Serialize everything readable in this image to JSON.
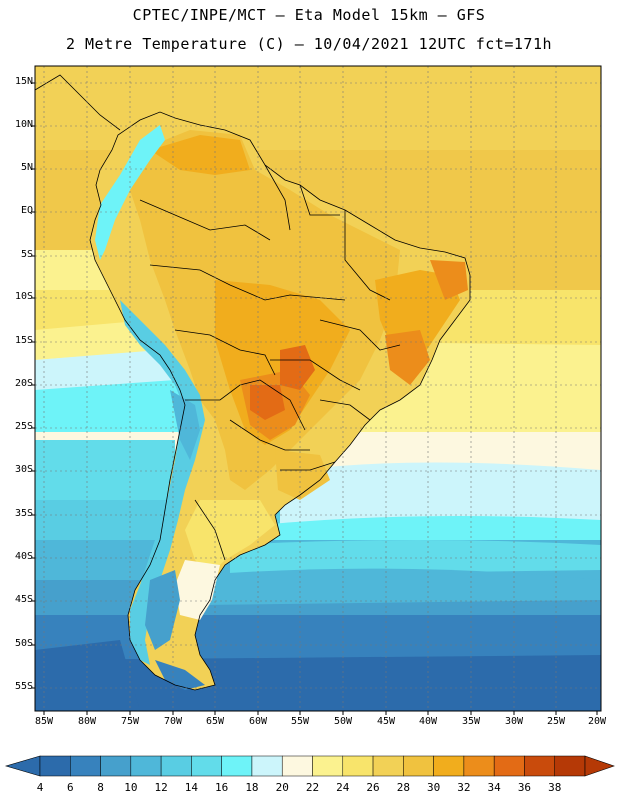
{
  "title": {
    "line1": "CPTEC/INPE/MCT –  Eta Model 15km – GFS",
    "line2": "2 Metre Temperature (C) – 10/04/2021 12UTC fct=171h"
  },
  "map": {
    "lat_labels": [
      "15N",
      "10N",
      "5N",
      "EQ",
      "5S",
      "10S",
      "15S",
      "20S",
      "25S",
      "30S",
      "35S",
      "40S",
      "45S",
      "50S",
      "55S"
    ],
    "lon_labels": [
      "85W",
      "80W",
      "75W",
      "70W",
      "65W",
      "60W",
      "55W",
      "50W",
      "45W",
      "40W",
      "35W",
      "30W",
      "25W",
      "20W"
    ],
    "lat_range": [
      16,
      -58
    ],
    "lon_range": [
      -85,
      -20
    ]
  },
  "colorbar": {
    "labels": [
      "4",
      "6",
      "8",
      "10",
      "12",
      "14",
      "16",
      "18",
      "20",
      "22",
      "24",
      "26",
      "28",
      "30",
      "32",
      "34",
      "36",
      "38"
    ],
    "colors": [
      "#2c6bab",
      "#3782bd",
      "#46a0cc",
      "#4fb7d9",
      "#59cde3",
      "#62dcea",
      "#6ef3f8",
      "#ccf5fb",
      "#fdf8e0",
      "#fbf28f",
      "#f8e46b",
      "#f2d156",
      "#f0c23f",
      "#f1ad1d",
      "#ec8d1b",
      "#e36b15",
      "#c94b0c",
      "#b53906"
    ]
  }
}
